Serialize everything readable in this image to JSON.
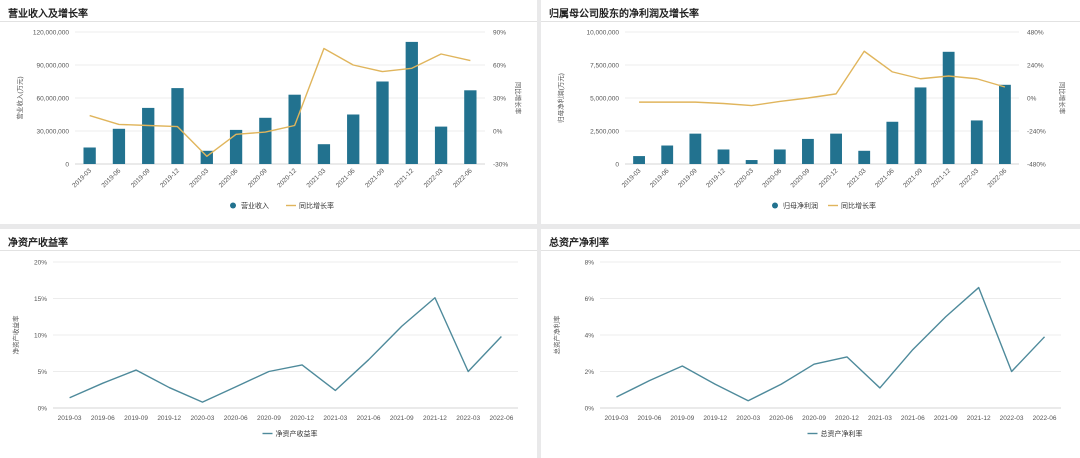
{
  "colors": {
    "bar": "#22728f",
    "growth_line": "#e0b55c",
    "ratio_line": "#4e8a9b",
    "grid": "#e6e6e6"
  },
  "chart_data": [
    {
      "type": "bar",
      "title": "营业收入及增长率",
      "categories": [
        "2019-03",
        "2019-06",
        "2019-09",
        "2019-12",
        "2020-03",
        "2020-06",
        "2020-09",
        "2020-12",
        "2021-03",
        "2021-06",
        "2021-09",
        "2021-12",
        "2022-03",
        "2022-06"
      ],
      "ylabel": "营业收入(万元)",
      "y2label": "同比增长率",
      "ylim": [
        0,
        120000000
      ],
      "yticks": [
        0,
        30000000,
        60000000,
        90000000,
        120000000
      ],
      "ytick_labels": [
        "0",
        "30,000,000",
        "60,000,000",
        "90,000,000",
        "120,000,000"
      ],
      "y2lim": [
        -30,
        90
      ],
      "y2ticks": [
        -30,
        0,
        30,
        60,
        90
      ],
      "y2tick_labels": [
        "-30%",
        "0%",
        "30%",
        "60%",
        "90%"
      ],
      "series": [
        {
          "name": "营业收入",
          "kind": "bar",
          "axis": "left",
          "values": [
            15000000,
            32000000,
            51000000,
            69000000,
            12000000,
            31000000,
            42000000,
            63000000,
            18000000,
            45000000,
            75000000,
            111000000,
            34000000,
            67000000
          ]
        },
        {
          "name": "同比增长率",
          "kind": "line",
          "axis": "right",
          "values": [
            14,
            6,
            5,
            4,
            -23,
            -3,
            -1,
            5,
            75,
            60,
            54,
            57,
            70,
            64
          ]
        }
      ]
    },
    {
      "type": "bar",
      "title": "归属母公司股东的净利润及增长率",
      "categories": [
        "2019-03",
        "2019-06",
        "2019-09",
        "2019-12",
        "2020-03",
        "2020-06",
        "2020-09",
        "2020-12",
        "2021-03",
        "2021-06",
        "2021-09",
        "2021-12",
        "2022-03",
        "2022-06"
      ],
      "ylabel": "归母净利润(万元)",
      "y2label": "同比增长率",
      "ylim": [
        0,
        10000000
      ],
      "yticks": [
        0,
        2500000,
        5000000,
        7500000,
        10000000
      ],
      "ytick_labels": [
        "0",
        "2,500,000",
        "5,000,000",
        "7,500,000",
        "10,000,000"
      ],
      "y2lim": [
        -480,
        480
      ],
      "y2ticks": [
        -480,
        -240,
        0,
        240,
        480
      ],
      "y2tick_labels": [
        "-480%",
        "-240%",
        "0%",
        "240%",
        "480%"
      ],
      "series": [
        {
          "name": "归母净利润",
          "kind": "bar",
          "axis": "left",
          "values": [
            600000,
            1400000,
            2300000,
            1100000,
            300000,
            1100000,
            1900000,
            2300000,
            1000000,
            3200000,
            5800000,
            8500000,
            3300000,
            6000000
          ]
        },
        {
          "name": "同比增长率",
          "kind": "line",
          "axis": "right",
          "values": [
            -30,
            -30,
            -30,
            -40,
            -55,
            -25,
            0,
            30,
            340,
            190,
            140,
            160,
            140,
            80
          ]
        }
      ]
    },
    {
      "type": "line",
      "title": "净资产收益率",
      "categories": [
        "2019-03",
        "2019-06",
        "2019-09",
        "2019-12",
        "2020-03",
        "2020-06",
        "2020-09",
        "2020-12",
        "2021-03",
        "2021-06",
        "2021-09",
        "2021-12",
        "2022-03",
        "2022-06"
      ],
      "ylabel": "净资产收益率",
      "ylim": [
        0,
        20
      ],
      "yticks": [
        0,
        5,
        10,
        15,
        20
      ],
      "ytick_labels": [
        "0%",
        "5%",
        "10%",
        "15%",
        "20%"
      ],
      "series": [
        {
          "name": "净资产收益率",
          "kind": "line",
          "axis": "left",
          "values": [
            1.4,
            3.4,
            5.2,
            2.8,
            0.8,
            2.9,
            5.0,
            5.9,
            2.4,
            6.6,
            11.2,
            15.1,
            5.0,
            9.8
          ]
        }
      ]
    },
    {
      "type": "line",
      "title": "总资产净利率",
      "categories": [
        "2019-03",
        "2019-06",
        "2019-09",
        "2019-12",
        "2020-03",
        "2020-06",
        "2020-09",
        "2020-12",
        "2021-03",
        "2021-06",
        "2021-09",
        "2021-12",
        "2022-03",
        "2022-06"
      ],
      "ylabel": "总资产净利率",
      "ylim": [
        0,
        8
      ],
      "yticks": [
        0,
        2,
        4,
        6,
        8
      ],
      "ytick_labels": [
        "0%",
        "2%",
        "4%",
        "6%",
        "8%"
      ],
      "series": [
        {
          "name": "总资产净利率",
          "kind": "line",
          "axis": "left",
          "values": [
            0.6,
            1.5,
            2.3,
            1.3,
            0.4,
            1.3,
            2.4,
            2.8,
            1.1,
            3.2,
            5.0,
            6.6,
            2.0,
            3.9
          ]
        }
      ]
    }
  ]
}
